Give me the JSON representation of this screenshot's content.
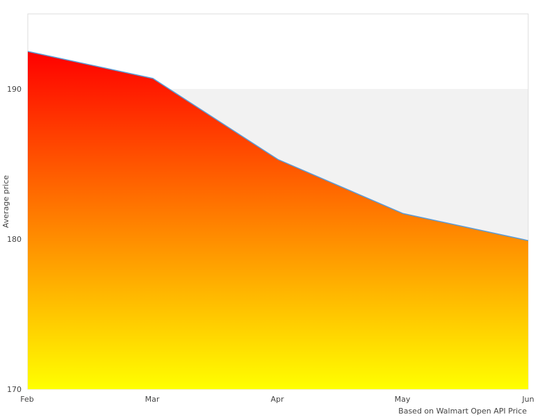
{
  "chart_data": {
    "type": "area",
    "categories": [
      "Feb",
      "Mar",
      "Apr",
      "May",
      "Jun"
    ],
    "series": [
      {
        "values": [
          192.5,
          190.7,
          185.3,
          181.7,
          179.9
        ]
      }
    ],
    "ylabel": "Average price",
    "xlabel": "Based on Walmart Open API Price",
    "ylim": [
      170,
      195
    ],
    "yticks": [
      170,
      180,
      190
    ],
    "grid": true,
    "fill_gradient": {
      "top": "#ff0000",
      "bottom": "#ffff00"
    },
    "line_color": "#5b9bd5",
    "band_color": "#f2f2f2"
  }
}
